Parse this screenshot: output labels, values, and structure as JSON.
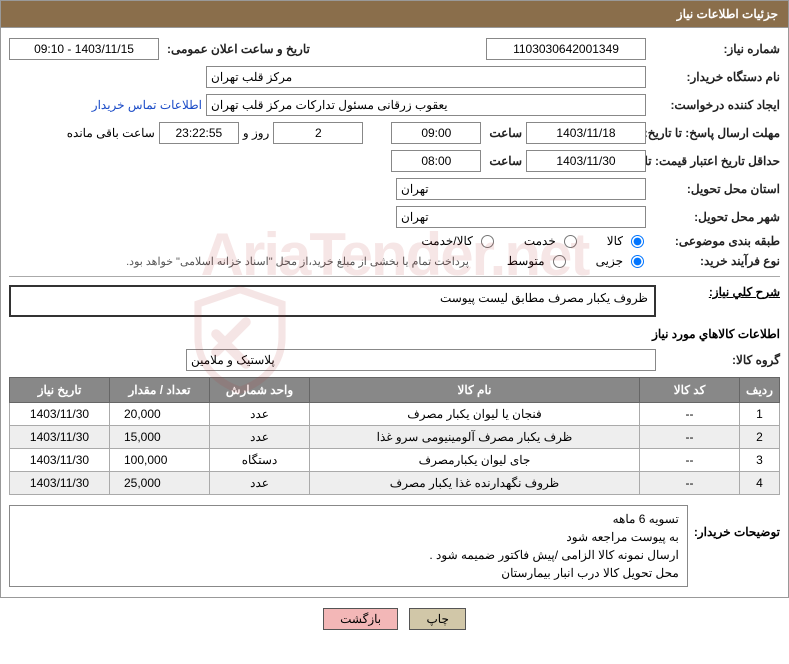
{
  "panel": {
    "title": "جزئیات اطلاعات نیاز"
  },
  "labels": {
    "need_no": "شماره نیاز:",
    "announce_dt": "تاریخ و ساعت اعلان عمومی:",
    "buyer_org": "نام دستگاه خریدار:",
    "requester": "ایجاد کننده درخواست:",
    "contact_link": "اطلاعات تماس خریدار",
    "deadline": "مهلت ارسال پاسخ: تا تاریخ:",
    "time_word": "ساعت",
    "days_and": "روز و",
    "remaining": "ساعت باقی مانده",
    "validity": "حداقل تاریخ اعتبار قیمت: تا تاریخ:",
    "province": "استان محل تحویل:",
    "city": "شهر محل تحویل:",
    "category": "طبقه بندی موضوعی:",
    "cat_goods": "کالا",
    "cat_service": "خدمت",
    "cat_both": "کالا/خدمت",
    "process": "نوع فرآیند خرید:",
    "proc_partial": "جزیی",
    "proc_medium": "متوسط",
    "payment_note": "پرداخت تمام یا بخشی از مبلغ خرید،از محل \"اسناد خزانه اسلامی\" خواهد بود.",
    "main_desc": "شرح کلي نياز:",
    "goods_info": "اطلاعات كالاهاي مورد نياز",
    "goods_group": "گروه کالا:",
    "buyer_notes": "توضيحات خريدار:",
    "btn_print": "چاپ",
    "btn_back": "بازگشت"
  },
  "values": {
    "need_no": "1103030642001349",
    "announce_dt": "1403/11/15 - 09:10",
    "buyer_org": "مرکز قلب تهران",
    "requester": "یعقوب زرقانی مسئول تدارکات مرکز قلب تهران",
    "deadline_date": "1403/11/18",
    "deadline_time": "09:00",
    "remaining_days": "2",
    "remaining_time": "23:22:55",
    "validity_date": "1403/11/30",
    "validity_time": "08:00",
    "province": "تهران",
    "city": "تهران",
    "main_desc": "ظروف یکبار مصرف مطابق لیست پیوست",
    "goods_group": "پلاستیک و ملامین",
    "buyer_notes_l1": "تسویه 6 ماهه",
    "buyer_notes_l2": "به پیوست مراجعه شود",
    "buyer_notes_l3": "ارسال نمونه کالا الزامی /پیش فاکتور ضمیمه شود .",
    "buyer_notes_l4": "محل تحویل کالا درب انبار بیمارستان"
  },
  "table": {
    "headers": {
      "row": "ردیف",
      "code": "کد کالا",
      "name": "نام کالا",
      "unit": "واحد شمارش",
      "qty": "تعداد / مقدار",
      "date": "تاریخ نیاز"
    },
    "rows": [
      {
        "n": "1",
        "code": "--",
        "name": "فنجان یا لیوان یکبار مصرف",
        "unit": "عدد",
        "qty": "20,000",
        "date": "1403/11/30"
      },
      {
        "n": "2",
        "code": "--",
        "name": "ظرف یکبار مصرف آلومینیومی سرو غذا",
        "unit": "عدد",
        "qty": "15,000",
        "date": "1403/11/30"
      },
      {
        "n": "3",
        "code": "--",
        "name": "جای لیوان یکبارمصرف",
        "unit": "دستگاه",
        "qty": "100,000",
        "date": "1403/11/30"
      },
      {
        "n": "4",
        "code": "--",
        "name": "ظروف نگهدارنده غذا یکبار مصرف",
        "unit": "عدد",
        "qty": "25,000",
        "date": "1403/11/30"
      }
    ]
  },
  "watermark": "AriaTender.net"
}
